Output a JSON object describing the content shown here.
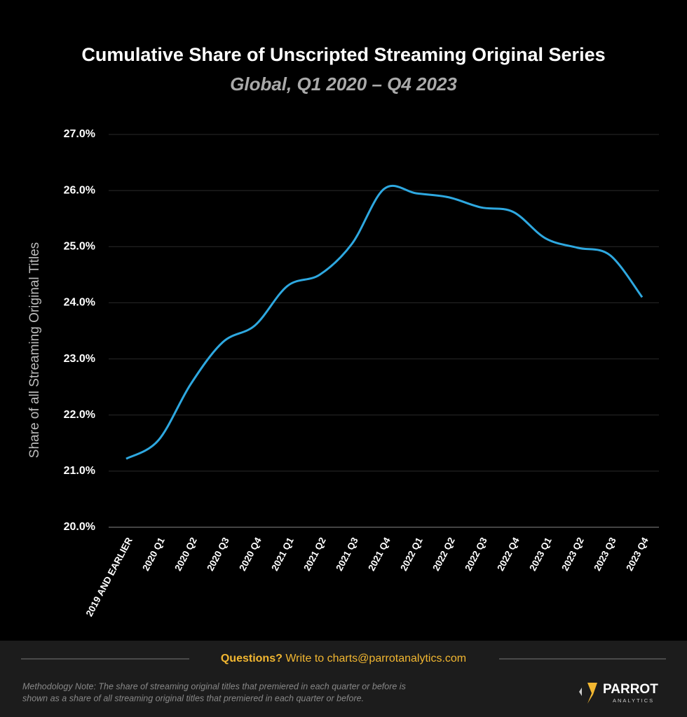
{
  "chart_data": {
    "type": "line",
    "title": "Cumulative Share of Unscripted Streaming Original Series",
    "subtitle": "Global, Q1 2020 – Q4 2023",
    "y_label": "Share of all Streaming Original Titles",
    "categories": [
      "2019 AND EARLIER",
      "2020 Q1",
      "2020 Q2",
      "2020 Q3",
      "2020 Q4",
      "2021 Q1",
      "2021 Q2",
      "2021 Q3",
      "2021 Q4",
      "2022 Q1",
      "2022 Q2",
      "2022 Q3",
      "2022 Q4",
      "2023 Q1",
      "2023 Q2",
      "2023 Q3",
      "2023 Q4"
    ],
    "values": [
      21.22,
      21.55,
      22.55,
      23.3,
      23.6,
      24.3,
      24.5,
      25.05,
      26.03,
      25.95,
      25.88,
      25.7,
      25.62,
      25.15,
      24.98,
      24.85,
      24.1
    ],
    "color": "#2ea8e0",
    "smooth": true,
    "ylim": [
      20,
      27
    ],
    "yticks": [
      {
        "value": 20,
        "label": "20.0%"
      },
      {
        "value": 21,
        "label": "21.0%"
      },
      {
        "value": 22,
        "label": "22.0%"
      },
      {
        "value": 23,
        "label": "23.0%"
      },
      {
        "value": 24,
        "label": "24.0%"
      },
      {
        "value": 25,
        "label": "25.0%"
      },
      {
        "value": 26,
        "label": "26.0%"
      },
      {
        "value": 27,
        "label": "27.0%"
      }
    ],
    "grid": true
  },
  "footer": {
    "question_lead": "Questions?",
    "question_text": "Write to charts@parrotanalytics.com",
    "note_line1": "Methodology Note: The share of streaming original titles that premiered in each quarter or before is",
    "note_line2": "shown as a share of all streaming original titles that premiered in each quarter or before.",
    "logo_name": "PARROT",
    "logo_sub": "ANALYTICS"
  }
}
